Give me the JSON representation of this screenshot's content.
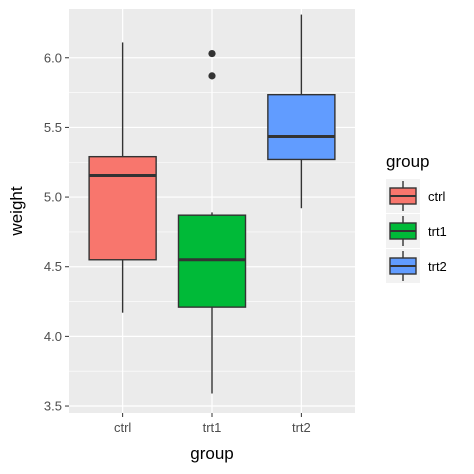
{
  "chart_data": {
    "type": "boxplot",
    "xlabel": "group",
    "ylabel": "weight",
    "categories": [
      "ctrl",
      "trt1",
      "trt2"
    ],
    "ylim": [
      3.45,
      6.35
    ],
    "y_ticks": [
      "3.5",
      "4.0",
      "4.5",
      "5.0",
      "5.5",
      "6.0"
    ],
    "grid": true,
    "legend_title": "group",
    "legend_position": "right",
    "boxes": [
      {
        "name": "ctrl",
        "color": "#F8766D",
        "whisker_low": 4.17,
        "q1": 4.55,
        "median": 5.155,
        "q3": 5.29,
        "whisker_high": 6.11,
        "outliers": []
      },
      {
        "name": "trt1",
        "color": "#00BA38",
        "whisker_low": 3.59,
        "q1": 4.21,
        "median": 4.55,
        "q3": 4.87,
        "whisker_high": 4.89,
        "outliers": [
          5.87,
          6.03
        ]
      },
      {
        "name": "trt2",
        "color": "#619CFF",
        "whisker_low": 4.92,
        "q1": 5.27,
        "median": 5.435,
        "q3": 5.735,
        "whisker_high": 6.31,
        "outliers": []
      }
    ]
  },
  "legend": {
    "title": "group",
    "items": [
      {
        "label": "ctrl",
        "color": "#F8766D"
      },
      {
        "label": "trt1",
        "color": "#00BA38"
      },
      {
        "label": "trt2",
        "color": "#619CFF"
      }
    ]
  }
}
